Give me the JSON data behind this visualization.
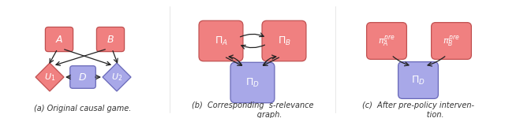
{
  "fig_width": 6.4,
  "fig_height": 1.5,
  "dpi": 100,
  "background": "#ffffff",
  "pink_fc": "#f08080",
  "pink_ec": "#c05050",
  "blue_fc": "#a8a8e8",
  "blue_ec": "#6868b8",
  "arrow_color": "#222222",
  "caption_color": "#333333",
  "captions": [
    "(a) Original causal game.",
    "(b) Corresponding  s-relevance\n         graph.",
    "(c) After pre-policy interven-\n         tion."
  ]
}
